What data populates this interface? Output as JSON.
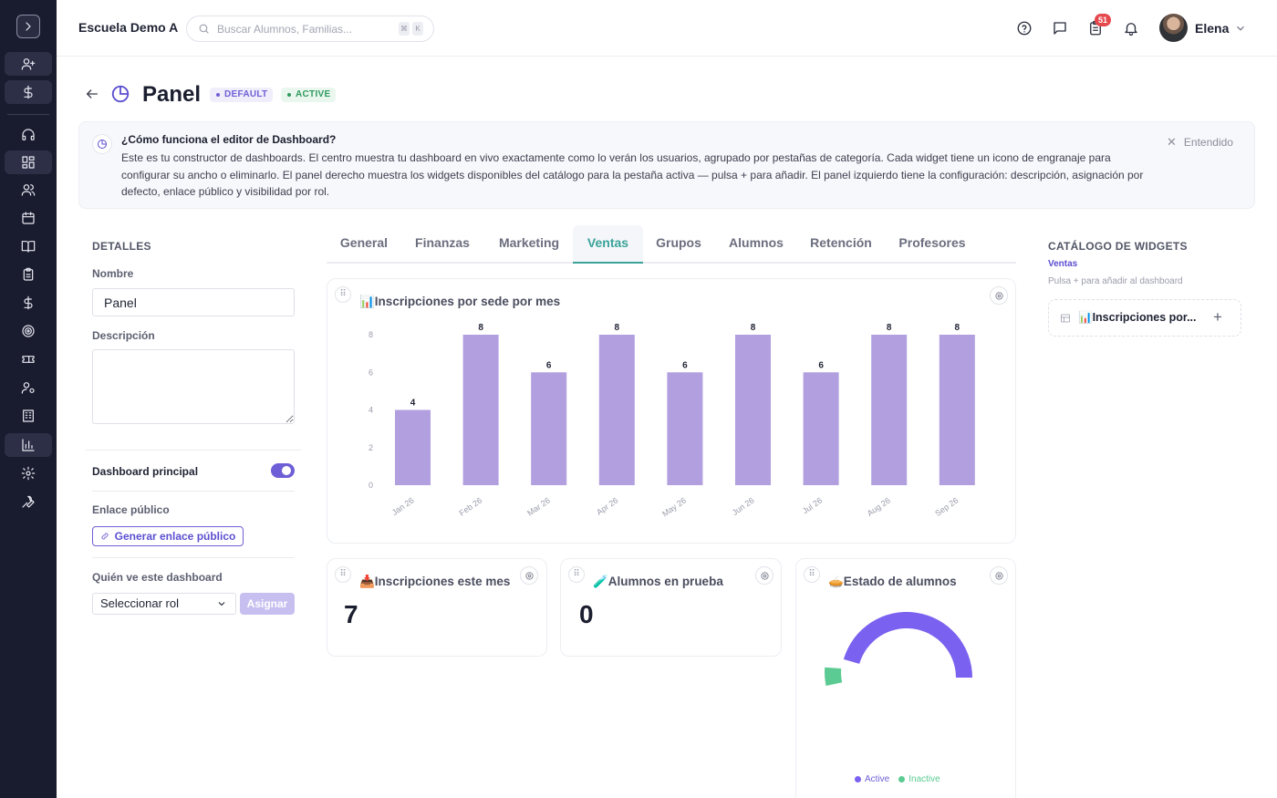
{
  "header": {
    "school_name": "Escuela Demo A",
    "search_placeholder": "Buscar Alumnos, Familias...",
    "kbd_cmd": "⌘",
    "kbd_k": "K",
    "notification_count": "51",
    "user_name": "Elena"
  },
  "page": {
    "title": "Panel",
    "badge_default": "DEFAULT",
    "badge_active": "ACTIVE"
  },
  "info": {
    "title": "¿Cómo funciona el editor de Dashboard?",
    "body": "Este es tu constructor de dashboards. El centro muestra tu dashboard en vivo exactamente como lo verán los usuarios, agrupado por pestañas de categoría. Cada widget tiene un icono de engranaje para configurar su ancho o eliminarlo. El panel derecho muestra los widgets disponibles del catálogo para la pestaña activa — pulsa + para añadir. El panel izquierdo tiene la configuración: descripción, asignación por defecto, enlace público y visibilidad por rol.",
    "dismiss": "Entendido"
  },
  "details": {
    "section": "DETALLES",
    "name_label": "Nombre",
    "name_value": "Panel",
    "description_label": "Descripción",
    "description_value": "",
    "main_dashboard_label": "Dashboard principal",
    "main_dashboard_on": true,
    "public_link_label": "Enlace público",
    "generate_link": "Generar enlace público",
    "who_sees_label": "Quién ve este dashboard",
    "role_select": "Seleccionar rol",
    "assign": "Asignar"
  },
  "tabs": [
    "General",
    "Finanzas",
    "Marketing",
    "Ventas",
    "Grupos",
    "Alumnos",
    "Retención",
    "Profesores"
  ],
  "active_tab": "Ventas",
  "widgets": {
    "enrollments_by_site": {
      "title": "📊Inscripciones por sede por mes"
    },
    "enrollments_month": {
      "title": "📥Inscripciones este mes",
      "value": "7"
    },
    "trial_students": {
      "title": "🧪Alumnos en prueba",
      "value": "0"
    },
    "student_status": {
      "title": "🥧Estado de alumnos"
    }
  },
  "catalog": {
    "title": "CATÁLOGO DE WIDGETS",
    "subtitle": "Ventas",
    "hint": "Pulsa + para añadir al dashboard",
    "item_label": "📊Inscripciones por...",
    "add": "+"
  },
  "colors": {
    "accent": "#6e5fd6",
    "bar": "#b19fdf",
    "teal": "#3aa39a",
    "active_series": "#7b61f0",
    "inactive_series": "#5ccb93",
    "sidebar_bg": "#191b2e"
  },
  "chart_data": [
    {
      "type": "bar",
      "categories": [
        "Jan 26",
        "Feb 26",
        "Mar 26",
        "Apr 26",
        "May 26",
        "Jun 26",
        "Jul 26",
        "Aug 26",
        "Sep 26"
      ],
      "values": [
        4,
        8,
        6,
        8,
        6,
        8,
        6,
        8,
        8
      ],
      "yticks": [
        0,
        2,
        4,
        6,
        8
      ],
      "ylim": [
        0,
        8
      ],
      "data_labels": true,
      "grid": false
    },
    {
      "type": "pie",
      "style": "half-donut",
      "labels": [
        "Active",
        "Inactive"
      ],
      "values": [
        91,
        9
      ],
      "legend": "bottom"
    }
  ],
  "icons": {
    "sidebar": [
      "chevron-right-icon",
      "user-plus-icon",
      "dollar-icon",
      "headset-icon",
      "dashboard-icon",
      "users-icon",
      "calendar-icon",
      "book-icon",
      "clipboard-icon",
      "dollar-icon",
      "target-icon",
      "ticket-icon",
      "user-gear-icon",
      "building-icon",
      "bar-chart-icon",
      "settings-icon",
      "wrench-icon"
    ]
  }
}
